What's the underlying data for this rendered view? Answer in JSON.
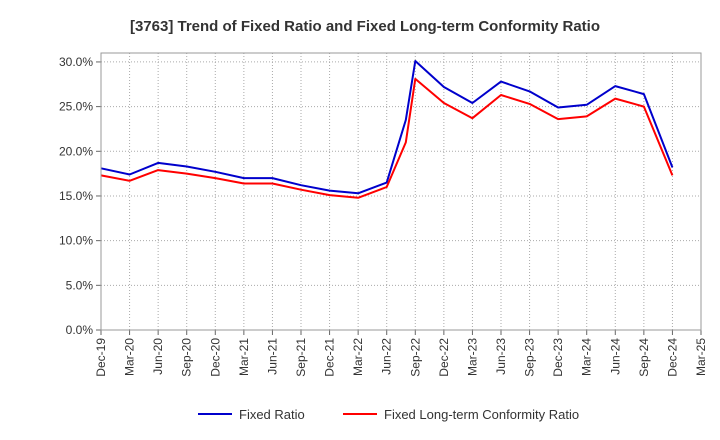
{
  "chart_data": {
    "type": "line",
    "title": "[3763]  Trend of Fixed Ratio and Fixed Long-term Conformity Ratio",
    "x_ticks": [
      "Dec-19",
      "Mar-20",
      "Jun-20",
      "Sep-20",
      "Dec-20",
      "Mar-21",
      "Jun-21",
      "Sep-21",
      "Dec-21",
      "Mar-22",
      "Jun-22",
      "Sep-22",
      "Dec-22",
      "Mar-23",
      "Jun-23",
      "Sep-23",
      "Dec-23",
      "Mar-24",
      "Jun-24",
      "Sep-24",
      "Dec-24",
      "Mar-25"
    ],
    "y_ticks": [
      "0.0%",
      "5.0%",
      "10.0%",
      "15.0%",
      "20.0%",
      "25.0%",
      "30.0%"
    ],
    "ylim": [
      0,
      31
    ],
    "grid": true,
    "legend_position": "bottom",
    "series": [
      {
        "name": "Fixed Ratio",
        "color": "#0000cc",
        "points": [
          [
            "Dec-19",
            18.1
          ],
          [
            "Mar-20",
            17.4
          ],
          [
            "Jun-20",
            18.7
          ],
          [
            "Sep-20",
            18.3
          ],
          [
            "Dec-20",
            17.7
          ],
          [
            "Mar-21",
            17.0
          ],
          [
            "Jun-21",
            17.0
          ],
          [
            "Sep-21",
            16.2
          ],
          [
            "Dec-21",
            15.6
          ],
          [
            "Mar-22",
            15.3
          ],
          [
            "Jun-22",
            16.5
          ],
          [
            "Aug-22",
            23.5
          ],
          [
            "Sep-22",
            30.1
          ],
          [
            "Dec-22",
            27.2
          ],
          [
            "Mar-23",
            25.4
          ],
          [
            "Jun-23",
            27.8
          ],
          [
            "Sep-23",
            26.7
          ],
          [
            "Dec-23",
            24.9
          ],
          [
            "Mar-24",
            25.2
          ],
          [
            "Jun-24",
            27.3
          ],
          [
            "Sep-24",
            26.4
          ],
          [
            "Dec-24",
            18.2
          ]
        ]
      },
      {
        "name": "Fixed Long-term Conformity Ratio",
        "color": "#ff0000",
        "points": [
          [
            "Dec-19",
            17.3
          ],
          [
            "Mar-20",
            16.7
          ],
          [
            "Jun-20",
            17.9
          ],
          [
            "Sep-20",
            17.5
          ],
          [
            "Dec-20",
            17.0
          ],
          [
            "Mar-21",
            16.4
          ],
          [
            "Jun-21",
            16.4
          ],
          [
            "Sep-21",
            15.7
          ],
          [
            "Dec-21",
            15.1
          ],
          [
            "Mar-22",
            14.8
          ],
          [
            "Jun-22",
            16.0
          ],
          [
            "Aug-22",
            21.0
          ],
          [
            "Sep-22",
            28.1
          ],
          [
            "Dec-22",
            25.4
          ],
          [
            "Mar-23",
            23.7
          ],
          [
            "Jun-23",
            26.3
          ],
          [
            "Sep-23",
            25.3
          ],
          [
            "Dec-23",
            23.6
          ],
          [
            "Mar-24",
            23.9
          ],
          [
            "Jun-24",
            25.9
          ],
          [
            "Sep-24",
            25.0
          ],
          [
            "Dec-24",
            17.3
          ]
        ]
      }
    ]
  }
}
